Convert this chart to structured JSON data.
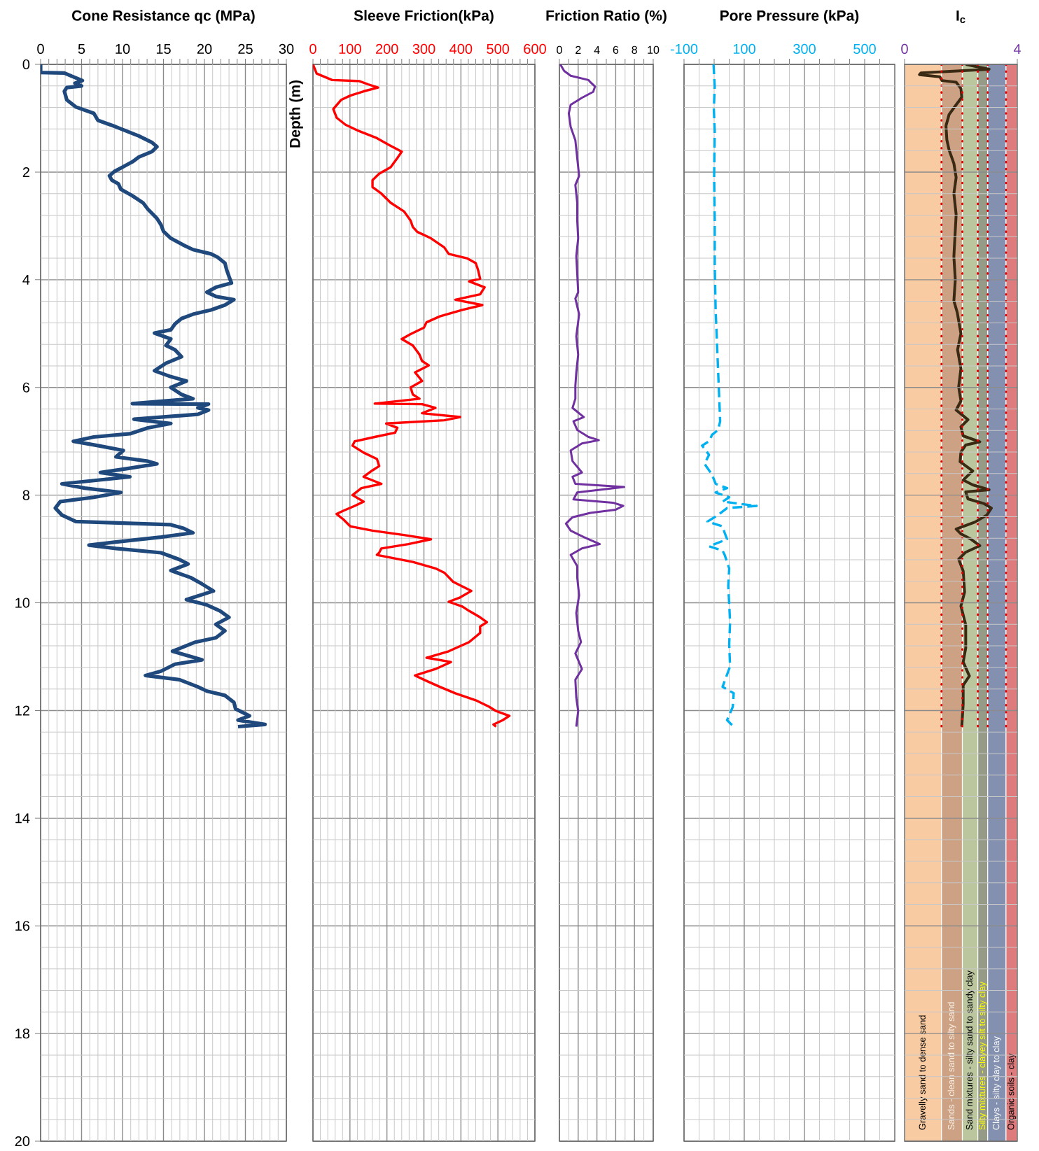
{
  "chart_data": [
    {
      "type": "line",
      "title": "Cone Resistance qc (MPa)",
      "ylabel": "Depth (m)",
      "xlim": [
        0,
        30
      ],
      "xticks": [
        0,
        {
          "value": 1,
          "label": null
        },
        {
          "value": 2,
          "label": null
        },
        {
          "value": 3,
          "label": null
        },
        {
          "value": 4,
          "label": null
        },
        5,
        {
          "value": 6,
          "label": null
        },
        {
          "value": 7,
          "label": null
        },
        {
          "value": 8,
          "label": null
        },
        {
          "value": 9,
          "label": null
        },
        10,
        {
          "value": 11,
          "label": null
        },
        {
          "value": 12,
          "label": null
        },
        {
          "value": 13,
          "label": null
        },
        {
          "value": 14,
          "label": null
        },
        15,
        {
          "value": 16,
          "label": null
        },
        {
          "value": 17,
          "label": null
        },
        {
          "value": 18,
          "label": null
        },
        {
          "value": 19,
          "label": null
        },
        20,
        {
          "value": 21,
          "label": null
        },
        {
          "value": 22,
          "label": null
        },
        {
          "value": 23,
          "label": null
        },
        {
          "value": 24,
          "label": null
        },
        25,
        {
          "value": 26,
          "label": null
        },
        {
          "value": 27,
          "label": null
        },
        {
          "value": 28,
          "label": null
        },
        {
          "value": 29,
          "label": null
        },
        30
      ],
      "ylim": [
        20,
        0
      ],
      "yticks": [
        0,
        {
          "value": 0.4,
          "label": null
        },
        {
          "value": 0.8,
          "label": null
        },
        {
          "value": 1.2,
          "label": null
        },
        {
          "value": 1.6,
          "label": null
        },
        2,
        {
          "value": 2.4,
          "label": null
        },
        {
          "value": 2.8,
          "label": null
        },
        {
          "value": 3.2,
          "label": null
        },
        {
          "value": 3.6,
          "label": null
        },
        4,
        {
          "value": 4.4,
          "label": null
        },
        {
          "value": 4.8,
          "label": null
        },
        {
          "value": 5.2,
          "label": null
        },
        {
          "value": 5.6,
          "label": null
        },
        6,
        {
          "value": 6.4,
          "label": null
        },
        {
          "value": 6.8,
          "label": null
        },
        {
          "value": 7.2,
          "label": null
        },
        {
          "value": 7.6,
          "label": null
        },
        8,
        {
          "value": 8.4,
          "label": null
        },
        {
          "value": 8.8,
          "label": null
        },
        {
          "value": 9.2,
          "label": null
        },
        {
          "value": 9.6,
          "label": null
        },
        10,
        {
          "value": 10.4,
          "label": null
        },
        {
          "value": 10.8,
          "label": null
        },
        {
          "value": 11.2,
          "label": null
        },
        {
          "value": 11.6,
          "label": null
        },
        12,
        {
          "value": 12.4,
          "label": null
        },
        {
          "value": 12.8,
          "label": null
        },
        {
          "value": 13.2,
          "label": null
        },
        {
          "value": 13.6,
          "label": null
        },
        14,
        {
          "value": 14.4,
          "label": null
        },
        {
          "value": 14.8,
          "label": null
        },
        {
          "value": 15.2,
          "label": null
        },
        {
          "value": 15.6,
          "label": null
        },
        16,
        {
          "value": 16.4,
          "label": null
        },
        {
          "value": 16.8,
          "label": null
        },
        {
          "value": 17.2,
          "label": null
        },
        {
          "value": 17.6,
          "label": null
        },
        18,
        {
          "value": 18.4,
          "label": null
        },
        {
          "value": 18.8,
          "label": null
        },
        {
          "value": 19.2,
          "label": null
        },
        {
          "value": 19.6,
          "label": null
        },
        20
      ],
      "grid": true,
      "series": [
        {
          "color": "#1F497D",
          "x": [
            0,
            0,
            2.9,
            3.8,
            5.1,
            4.2,
            5.0,
            3.2,
            2.9,
            3.2,
            4.3,
            6.5,
            7.0,
            9.2,
            12.0,
            13.6,
            14.2,
            13.6,
            12.0,
            11.2,
            10.1,
            9.0,
            8.4,
            8.7,
            9.5,
            9.8,
            11.2,
            12.5,
            13.1,
            14.2,
            14.7,
            15.0,
            15.9,
            17.5,
            18.6,
            20.8,
            21.6,
            22.5,
            22.7,
            23.0,
            23.3,
            21.4,
            20.3,
            21.4,
            23.6,
            22.5,
            20.8,
            18.6,
            17.2,
            16.4,
            15.9,
            13.9,
            15.9,
            15.3,
            16.4,
            17.2,
            15.3,
            13.9,
            15.9,
            17.8,
            15.9,
            17.2,
            18.6,
            11.2,
            20.5,
            19.2,
            20.5,
            19.2,
            11.4,
            15.9,
            13.1,
            10.9,
            6.5,
            4.0,
            7.0,
            10.1,
            9.2,
            13.1,
            14.2,
            10.9,
            7.3,
            10.9,
            2.6,
            5.4,
            9.8,
            6.5,
            2.4,
            1.8,
            2.6,
            4.3,
            15.9,
            17.5,
            18.6,
            14.7,
            9.2,
            5.9,
            9.2,
            14.7,
            17.0,
            18.0,
            15.9,
            18.3,
            19.7,
            21.1,
            17.8,
            20.3,
            21.9,
            23.0,
            21.4,
            22.5,
            21.4,
            18.9,
            16.1,
            19.7,
            16.4,
            14.7,
            12.8,
            17.0,
            19.2,
            20.3,
            22.5,
            23.6,
            23.8,
            25.5,
            24.1,
            27.4,
            24.1
          ],
          "values": [
            0,
            0.15,
            0.16,
            0.22,
            0.3,
            0.35,
            0.4,
            0.43,
            0.5,
            0.66,
            0.79,
            0.91,
            1.04,
            1.16,
            1.33,
            1.45,
            1.53,
            1.62,
            1.72,
            1.81,
            1.9,
            1.99,
            2.07,
            2.15,
            2.22,
            2.32,
            2.44,
            2.57,
            2.69,
            2.86,
            2.98,
            3.1,
            3.23,
            3.36,
            3.44,
            3.52,
            3.58,
            3.69,
            3.81,
            3.94,
            4.06,
            4.14,
            4.23,
            4.31,
            4.37,
            4.47,
            4.56,
            4.64,
            4.72,
            4.82,
            4.93,
            4.99,
            5.1,
            5.22,
            5.3,
            5.43,
            5.55,
            5.69,
            5.8,
            5.88,
            6.0,
            6.13,
            6.21,
            6.3,
            6.31,
            6.38,
            6.42,
            6.5,
            6.59,
            6.67,
            6.75,
            6.86,
            6.92,
            7.0,
            7.08,
            7.17,
            7.29,
            7.37,
            7.42,
            7.5,
            7.58,
            7.66,
            7.79,
            7.87,
            7.95,
            8.04,
            8.12,
            8.24,
            8.37,
            8.49,
            8.55,
            8.62,
            8.7,
            8.78,
            8.87,
            8.93,
            8.99,
            9.07,
            9.2,
            9.28,
            9.4,
            9.53,
            9.65,
            9.78,
            9.94,
            10.04,
            10.15,
            10.27,
            10.4,
            10.52,
            10.65,
            10.73,
            10.9,
            11.06,
            11.14,
            11.27,
            11.35,
            11.43,
            11.56,
            11.64,
            11.72,
            11.85,
            11.97,
            12.1,
            12.18,
            12.26,
            12.3
          ]
        }
      ]
    },
    {
      "type": "line",
      "title": "Sleeve Friction(kPa)",
      "xlim": [
        0,
        600
      ],
      "xticks": [
        0,
        {
          "value": 20,
          "label": null
        },
        {
          "value": 40,
          "label": null
        },
        {
          "value": 60,
          "label": null
        },
        {
          "value": 80,
          "label": null
        },
        100,
        {
          "value": 120,
          "label": null
        },
        {
          "value": 140,
          "label": null
        },
        {
          "value": 160,
          "label": null
        },
        {
          "value": 180,
          "label": null
        },
        200,
        {
          "value": 220,
          "label": null
        },
        {
          "value": 240,
          "label": null
        },
        {
          "value": 260,
          "label": null
        },
        {
          "value": 280,
          "label": null
        },
        300,
        {
          "value": 320,
          "label": null
        },
        {
          "value": 340,
          "label": null
        },
        {
          "value": 360,
          "label": null
        },
        {
          "value": 380,
          "label": null
        },
        400,
        {
          "value": 420,
          "label": null
        },
        {
          "value": 440,
          "label": null
        },
        {
          "value": 460,
          "label": null
        },
        {
          "value": 480,
          "label": null
        },
        500,
        {
          "value": 520,
          "label": null
        },
        {
          "value": 540,
          "label": null
        },
        {
          "value": 560,
          "label": null
        },
        {
          "value": 580,
          "label": null
        },
        600
      ],
      "ylim": [
        20,
        0
      ],
      "yticks": [
        0,
        {
          "value": 0.4,
          "label": null
        },
        {
          "value": 0.8,
          "label": null
        },
        {
          "value": 1.2,
          "label": null
        },
        {
          "value": 1.6,
          "label": null
        },
        2,
        {
          "value": 2.4,
          "label": null
        },
        {
          "value": 2.8,
          "label": null
        },
        {
          "value": 3.2,
          "label": null
        },
        {
          "value": 3.6,
          "label": null
        },
        4,
        {
          "value": 4.4,
          "label": null
        },
        {
          "value": 4.8,
          "label": null
        },
        {
          "value": 5.2,
          "label": null
        },
        {
          "value": 5.6,
          "label": null
        },
        6,
        {
          "value": 6.4,
          "label": null
        },
        {
          "value": 6.8,
          "label": null
        },
        {
          "value": 7.2,
          "label": null
        },
        {
          "value": 7.6,
          "label": null
        },
        8,
        {
          "value": 8.4,
          "label": null
        },
        {
          "value": 8.8,
          "label": null
        },
        {
          "value": 9.2,
          "label": null
        },
        {
          "value": 9.6,
          "label": null
        },
        10,
        {
          "value": 10.4,
          "label": null
        },
        {
          "value": 10.8,
          "label": null
        },
        {
          "value": 11.2,
          "label": null
        },
        {
          "value": 11.6,
          "label": null
        },
        12,
        {
          "value": 12.4,
          "label": null
        },
        {
          "value": 12.8,
          "label": null
        },
        {
          "value": 13.2,
          "label": null
        },
        {
          "value": 13.6,
          "label": null
        },
        14,
        {
          "value": 14.4,
          "label": null
        },
        {
          "value": 14.8,
          "label": null
        },
        {
          "value": 15.2,
          "label": null
        },
        {
          "value": 15.6,
          "label": null
        },
        16,
        {
          "value": 16.4,
          "label": null
        },
        {
          "value": 16.8,
          "label": null
        },
        {
          "value": 17.2,
          "label": null
        },
        {
          "value": 17.6,
          "label": null
        },
        18,
        {
          "value": 18.4,
          "label": null
        },
        {
          "value": 18.8,
          "label": null
        },
        {
          "value": 19.2,
          "label": null
        },
        {
          "value": 19.6,
          "label": null
        },
        20
      ],
      "grid": true,
      "tick_labels": "x",
      "series": [
        {
          "color": "#FF0000",
          "x": [
            0,
            10,
            52,
            125,
            149,
            176,
            137,
            101,
            76,
            55,
            64,
            88,
            125,
            173,
            204,
            240,
            228,
            210,
            179,
            161,
            161,
            185,
            210,
            246,
            264,
            270,
            282,
            319,
            355,
            367,
            416,
            440,
            446,
            452,
            422,
            464,
            452,
            385,
            458,
            404,
            343,
            307,
            300,
            264,
            240,
            270,
            288,
            295,
            313,
            276,
            295,
            264,
            270,
            288,
            167,
            295,
            331,
            295,
            398,
            355,
            198,
            228,
            222,
            167,
            113,
            107,
            137,
            173,
            179,
            161,
            137,
            185,
            131,
            107,
            137,
            113,
            82,
            64,
            82,
            101,
            161,
            246,
            319,
            258,
            185,
            179,
            173,
            270,
            331,
            355,
            379,
            428,
            398,
            367,
            404,
            422,
            452,
            470,
            452,
            452,
            422,
            367,
            307,
            373,
            331,
            276,
            307,
            343,
            385,
            440,
            476,
            495,
            531,
            513,
            488,
            495
          ],
          "values": [
            0,
            0.17,
            0.29,
            0.31,
            0.37,
            0.43,
            0.5,
            0.58,
            0.66,
            0.83,
            0.99,
            1.12,
            1.24,
            1.37,
            1.49,
            1.62,
            1.74,
            1.91,
            2.03,
            2.15,
            2.28,
            2.4,
            2.57,
            2.73,
            2.9,
            3.02,
            3.11,
            3.23,
            3.4,
            3.52,
            3.6,
            3.69,
            3.81,
            3.98,
            4.03,
            4.14,
            4.27,
            4.37,
            4.47,
            4.56,
            4.68,
            4.79,
            4.89,
            5.01,
            5.1,
            5.22,
            5.39,
            5.51,
            5.59,
            5.72,
            5.88,
            6.0,
            6.13,
            6.21,
            6.3,
            6.31,
            6.38,
            6.48,
            6.55,
            6.61,
            6.67,
            6.75,
            6.84,
            6.92,
            7.0,
            7.08,
            7.21,
            7.33,
            7.46,
            7.54,
            7.66,
            7.79,
            7.87,
            8.0,
            8.12,
            8.2,
            8.29,
            8.35,
            8.45,
            8.58,
            8.66,
            8.74,
            8.82,
            8.91,
            8.99,
            9.07,
            9.11,
            9.24,
            9.36,
            9.44,
            9.61,
            9.78,
            9.9,
            9.98,
            10.07,
            10.15,
            10.27,
            10.36,
            10.44,
            10.56,
            10.73,
            10.9,
            11.02,
            11.1,
            11.23,
            11.35,
            11.45,
            11.56,
            11.68,
            11.81,
            11.93,
            12.01,
            12.1,
            12.18,
            12.26,
            12.3
          ]
        }
      ]
    },
    {
      "type": "line",
      "title": "Friction Ratio (%)",
      "xlim": [
        0,
        10
      ],
      "xticks": [
        0,
        {
          "value": 1,
          "label": null
        },
        2,
        {
          "value": 3,
          "label": null
        },
        4,
        {
          "value": 5,
          "label": null
        },
        6,
        {
          "value": 7,
          "label": null
        },
        8,
        {
          "value": 9,
          "label": null
        },
        10
      ],
      "ylim": [
        20,
        0
      ],
      "yticks": [
        0,
        {
          "value": 0.4,
          "label": null
        },
        {
          "value": 0.8,
          "label": null
        },
        {
          "value": 1.2,
          "label": null
        },
        {
          "value": 1.6,
          "label": null
        },
        2,
        {
          "value": 2.4,
          "label": null
        },
        {
          "value": 2.8,
          "label": null
        },
        {
          "value": 3.2,
          "label": null
        },
        {
          "value": 3.6,
          "label": null
        },
        4,
        {
          "value": 4.4,
          "label": null
        },
        {
          "value": 4.8,
          "label": null
        },
        {
          "value": 5.2,
          "label": null
        },
        {
          "value": 5.6,
          "label": null
        },
        6,
        {
          "value": 6.4,
          "label": null
        },
        {
          "value": 6.8,
          "label": null
        },
        {
          "value": 7.2,
          "label": null
        },
        {
          "value": 7.6,
          "label": null
        },
        8,
        {
          "value": 8.4,
          "label": null
        },
        {
          "value": 8.8,
          "label": null
        },
        {
          "value": 9.2,
          "label": null
        },
        {
          "value": 9.6,
          "label": null
        },
        10,
        {
          "value": 10.4,
          "label": null
        },
        {
          "value": 10.8,
          "label": null
        },
        {
          "value": 11.2,
          "label": null
        },
        {
          "value": 11.6,
          "label": null
        },
        12,
        {
          "value": 12.4,
          "label": null
        },
        {
          "value": 12.8,
          "label": null
        },
        {
          "value": 13.2,
          "label": null
        },
        {
          "value": 13.6,
          "label": null
        },
        14,
        {
          "value": 14.4,
          "label": null
        },
        {
          "value": 14.8,
          "label": null
        },
        {
          "value": 15.2,
          "label": null
        },
        {
          "value": 15.6,
          "label": null
        },
        16,
        {
          "value": 16.4,
          "label": null
        },
        {
          "value": 16.8,
          "label": null
        },
        {
          "value": 17.2,
          "label": null
        },
        {
          "value": 17.6,
          "label": null
        },
        18,
        {
          "value": 18.4,
          "label": null
        },
        {
          "value": 18.8,
          "label": null
        },
        {
          "value": 19.2,
          "label": null
        },
        {
          "value": 19.6,
          "label": null
        },
        20
      ],
      "grid": true,
      "tick_labels": "x",
      "series": [
        {
          "color": "#7030A0",
          "x": [
            0.1,
            0.5,
            1.2,
            3.1,
            3.3,
            3.8,
            3.6,
            2.4,
            1.2,
            1.0,
            1.2,
            1.7,
            2.1,
            1.7,
            1.9,
            1.9,
            2.0,
            1.8,
            1.9,
            2.0,
            1.7,
            2.1,
            1.8,
            2.0,
            1.8,
            1.7,
            1.7,
            1.4,
            2.6,
            1.5,
            1.9,
            3.1,
            4.2,
            2.4,
            1.2,
            1.4,
            2.4,
            1.4,
            1.7,
            6.9,
            4.3,
            1.9,
            1.5,
            5.7,
            6.8,
            6.0,
            3.3,
            1.4,
            0.7,
            1.2,
            2.6,
            4.3,
            2.4,
            1.2,
            1.9,
            1.9,
            2.1,
            1.8,
            2.0,
            2.3,
            1.7,
            2.4,
            1.7,
            1.8,
            2.0,
            1.8
          ],
          "values": [
            0,
            0.12,
            0.21,
            0.29,
            0.33,
            0.41,
            0.51,
            0.62,
            0.75,
            0.91,
            1.16,
            1.41,
            2.07,
            2.24,
            2.57,
            2.9,
            3.23,
            3.56,
            3.89,
            4.23,
            4.35,
            4.64,
            5.05,
            5.39,
            5.72,
            5.97,
            6.21,
            6.38,
            6.55,
            6.63,
            6.79,
            6.92,
            6.98,
            7.04,
            7.17,
            7.37,
            7.58,
            7.66,
            7.79,
            7.85,
            7.9,
            7.95,
            8.08,
            8.14,
            8.2,
            8.27,
            8.33,
            8.41,
            8.53,
            8.66,
            8.78,
            8.91,
            8.99,
            9.11,
            9.32,
            9.53,
            9.86,
            10.19,
            10.52,
            10.73,
            10.94,
            11.23,
            11.43,
            11.76,
            12.01,
            12.3
          ]
        }
      ]
    },
    {
      "type": "line",
      "title": "Pore Pressure (kPa)",
      "xlim": [
        -100,
        600
      ],
      "xticks": [
        -100,
        {
          "value": -50,
          "label": null
        },
        {
          "value": 0,
          "label": null
        },
        {
          "value": 50,
          "label": null
        },
        100,
        {
          "value": 150,
          "label": null
        },
        {
          "value": 200,
          "label": null
        },
        {
          "value": 250,
          "label": null
        },
        300,
        {
          "value": 350,
          "label": null
        },
        {
          "value": 400,
          "label": null
        },
        {
          "value": 450,
          "label": null
        },
        500,
        {
          "value": 550,
          "label": null
        }
      ],
      "ylim": [
        20,
        0
      ],
      "yticks": [
        0,
        {
          "value": 0.4,
          "label": null
        },
        {
          "value": 0.8,
          "label": null
        },
        {
          "value": 1.2,
          "label": null
        },
        {
          "value": 1.6,
          "label": null
        },
        2,
        {
          "value": 2.4,
          "label": null
        },
        {
          "value": 2.8,
          "label": null
        },
        {
          "value": 3.2,
          "label": null
        },
        {
          "value": 3.6,
          "label": null
        },
        4,
        {
          "value": 4.4,
          "label": null
        },
        {
          "value": 4.8,
          "label": null
        },
        {
          "value": 5.2,
          "label": null
        },
        {
          "value": 5.6,
          "label": null
        },
        6,
        {
          "value": 6.4,
          "label": null
        },
        {
          "value": 6.8,
          "label": null
        },
        {
          "value": 7.2,
          "label": null
        },
        {
          "value": 7.6,
          "label": null
        },
        8,
        {
          "value": 8.4,
          "label": null
        },
        {
          "value": 8.8,
          "label": null
        },
        {
          "value": 9.2,
          "label": null
        },
        {
          "value": 9.6,
          "label": null
        },
        10,
        {
          "value": 10.4,
          "label": null
        },
        {
          "value": 10.8,
          "label": null
        },
        {
          "value": 11.2,
          "label": null
        },
        {
          "value": 11.6,
          "label": null
        },
        12,
        {
          "value": 12.4,
          "label": null
        },
        {
          "value": 12.8,
          "label": null
        },
        {
          "value": 13.2,
          "label": null
        },
        {
          "value": 13.6,
          "label": null
        },
        14,
        {
          "value": 14.4,
          "label": null
        },
        {
          "value": 14.8,
          "label": null
        },
        {
          "value": 15.2,
          "label": null
        },
        {
          "value": 15.6,
          "label": null
        },
        16,
        {
          "value": 16.4,
          "label": null
        },
        {
          "value": 16.8,
          "label": null
        },
        {
          "value": 17.2,
          "label": null
        },
        {
          "value": 17.6,
          "label": null
        },
        18,
        {
          "value": 18.4,
          "label": null
        },
        {
          "value": 18.8,
          "label": null
        },
        {
          "value": 19.2,
          "label": null
        },
        {
          "value": 19.6,
          "label": null
        },
        20
      ],
      "grid": true,
      "tick_labels": "x",
      "series": [
        {
          "color": "#00B0F0",
          "line_style": "dashed",
          "x": [
            -2,
            2,
            -1,
            2,
            0,
            2,
            2,
            5,
            11,
            17,
            20,
            13,
            -7,
            -17,
            -40,
            -17,
            -32,
            -7,
            5,
            43,
            5,
            50,
            28,
            141,
            43,
            13,
            -22,
            28,
            35,
            43,
            -17,
            28,
            35,
            50,
            47,
            50,
            53,
            50,
            53,
            28,
            65,
            62,
            43,
            65
          ],
          "values": [
            0,
            0.41,
            0.83,
            1.24,
            2.07,
            2.9,
            3.73,
            4.56,
            5.39,
            6.21,
            6.63,
            6.79,
            6.88,
            7.0,
            7.08,
            7.25,
            7.42,
            7.62,
            7.79,
            7.87,
            7.95,
            8.04,
            8.12,
            8.2,
            8.24,
            8.37,
            8.49,
            8.58,
            8.7,
            8.82,
            8.95,
            9.03,
            9.11,
            9.36,
            9.69,
            10.02,
            10.36,
            10.77,
            11.18,
            11.56,
            11.68,
            11.93,
            12.18,
            12.3
          ]
        }
      ]
    },
    {
      "type": "line",
      "title": "I$_{c}$",
      "xlim": [
        0,
        4
      ],
      "xticks": [
        0,
        4
      ],
      "ylim": [
        20,
        0
      ],
      "yticks": [
        0,
        {
          "value": 0.4,
          "label": null
        },
        {
          "value": 0.8,
          "label": null
        },
        {
          "value": 1.2,
          "label": null
        },
        {
          "value": 1.6,
          "label": null
        },
        2,
        {
          "value": 2.4,
          "label": null
        },
        {
          "value": 2.8,
          "label": null
        },
        {
          "value": 3.2,
          "label": null
        },
        {
          "value": 3.6,
          "label": null
        },
        4,
        {
          "value": 4.4,
          "label": null
        },
        {
          "value": 4.8,
          "label": null
        },
        {
          "value": 5.2,
          "label": null
        },
        {
          "value": 5.6,
          "label": null
        },
        6,
        {
          "value": 6.4,
          "label": null
        },
        {
          "value": 6.8,
          "label": null
        },
        {
          "value": 7.2,
          "label": null
        },
        {
          "value": 7.6,
          "label": null
        },
        8,
        {
          "value": 8.4,
          "label": null
        },
        {
          "value": 8.8,
          "label": null
        },
        {
          "value": 9.2,
          "label": null
        },
        {
          "value": 9.6,
          "label": null
        },
        10,
        {
          "value": 10.4,
          "label": null
        },
        {
          "value": 10.8,
          "label": null
        },
        {
          "value": 11.2,
          "label": null
        },
        {
          "value": 11.6,
          "label": null
        },
        12,
        {
          "value": 12.4,
          "label": null
        },
        {
          "value": 12.8,
          "label": null
        },
        {
          "value": 13.2,
          "label": null
        },
        {
          "value": 13.6,
          "label": null
        },
        14,
        {
          "value": 14.4,
          "label": null
        },
        {
          "value": 14.8,
          "label": null
        },
        {
          "value": 15.2,
          "label": null
        },
        {
          "value": 15.6,
          "label": null
        },
        16,
        {
          "value": 16.4,
          "label": null
        },
        {
          "value": 16.8,
          "label": null
        },
        {
          "value": 17.2,
          "label": null
        },
        {
          "value": 17.6,
          "label": null
        },
        18,
        {
          "value": 18.4,
          "label": null
        },
        {
          "value": 18.8,
          "label": null
        },
        {
          "value": 19.2,
          "label": null
        },
        {
          "value": 19.6,
          "label": null
        },
        20
      ],
      "grid": "y",
      "tick_labels": "x",
      "bands": [
        {
          "axis": "x",
          "from": 0,
          "to": 1.31,
          "label": "Gravelly sand to dense sand",
          "color": "#F9CBA2"
        },
        {
          "axis": "x",
          "from": 1.31,
          "to": 2.05,
          "label": "Sands - clean sand to silty sand",
          "color": "#CCA184"
        },
        {
          "axis": "x",
          "from": 2.05,
          "to": 2.6,
          "label": "Sand mixtures - silty sand to sandy clay",
          "color": "#BBC69E"
        },
        {
          "axis": "x",
          "from": 2.6,
          "to": 2.95,
          "label": "Silty mixtures - clayey silt to silty clay",
          "color": "#959B87"
        },
        {
          "axis": "x",
          "from": 2.95,
          "to": 3.6,
          "label": "Clays - silty clay to clay",
          "color": "#8390B0"
        },
        {
          "axis": "x",
          "from": 3.6,
          "to": 4,
          "label": "Organic soils - clay",
          "color": "#DE7B7C"
        }
      ],
      "series": [
        {
          "color": "#3A2A14",
          "x": [
            2.17,
            3.0,
            0.58,
            0.53,
            1.25,
            1.33,
            1.83,
            2.0,
            2.03,
            1.83,
            1.58,
            1.47,
            1.5,
            1.58,
            1.75,
            1.83,
            1.75,
            1.83,
            1.75,
            1.8,
            1.75,
            1.87,
            2.0,
            1.88,
            2.0,
            1.92,
            2.0,
            1.83,
            2.25,
            2.0,
            2.08,
            2.67,
            2.17,
            2.0,
            1.97,
            2.42,
            2.08,
            2.42,
            3.0,
            2.17,
            2.25,
            2.83,
            3.08,
            2.92,
            2.5,
            1.83,
            2.0,
            2.33,
            2.67,
            2.17,
            1.92,
            2.08,
            2.13,
            2.0,
            2.17,
            2.17,
            2.08,
            2.3,
            2.08,
            2.08,
            2.03
          ],
          "values": [
            0,
            0.09,
            0.16,
            0.19,
            0.23,
            0.3,
            0.33,
            0.45,
            0.61,
            0.75,
            0.93,
            1.14,
            1.4,
            1.59,
            1.84,
            2.1,
            2.4,
            2.79,
            3.57,
            4.0,
            4.39,
            4.61,
            5.0,
            5.3,
            5.65,
            5.99,
            6.25,
            6.42,
            6.6,
            6.73,
            6.9,
            7.01,
            7.07,
            7.2,
            7.38,
            7.55,
            7.72,
            7.81,
            7.9,
            7.94,
            8.07,
            8.16,
            8.24,
            8.37,
            8.5,
            8.63,
            8.72,
            8.81,
            8.94,
            9.06,
            9.19,
            9.41,
            9.8,
            10.06,
            10.41,
            10.84,
            11.1,
            11.36,
            11.53,
            11.88,
            12.3
          ]
        },
        {
          "color": "#E00000",
          "line_style": "dotted",
          "x": [
            1.31,
            1.31
          ],
          "values": [
            0,
            12.3
          ]
        },
        {
          "color": "#E00000",
          "line_style": "dotted",
          "x": [
            2.05,
            2.05
          ],
          "values": [
            0,
            12.3
          ]
        },
        {
          "color": "#E00000",
          "line_style": "dotted",
          "x": [
            2.6,
            2.6
          ],
          "values": [
            0,
            12.3
          ]
        },
        {
          "color": "#E00000",
          "line_style": "dotted",
          "x": [
            2.95,
            2.95
          ],
          "values": [
            0,
            12.3
          ]
        },
        {
          "color": "#E00000",
          "line_style": "dotted",
          "x": [
            3.6,
            3.6
          ],
          "values": [
            0,
            12.3
          ]
        }
      ]
    }
  ]
}
